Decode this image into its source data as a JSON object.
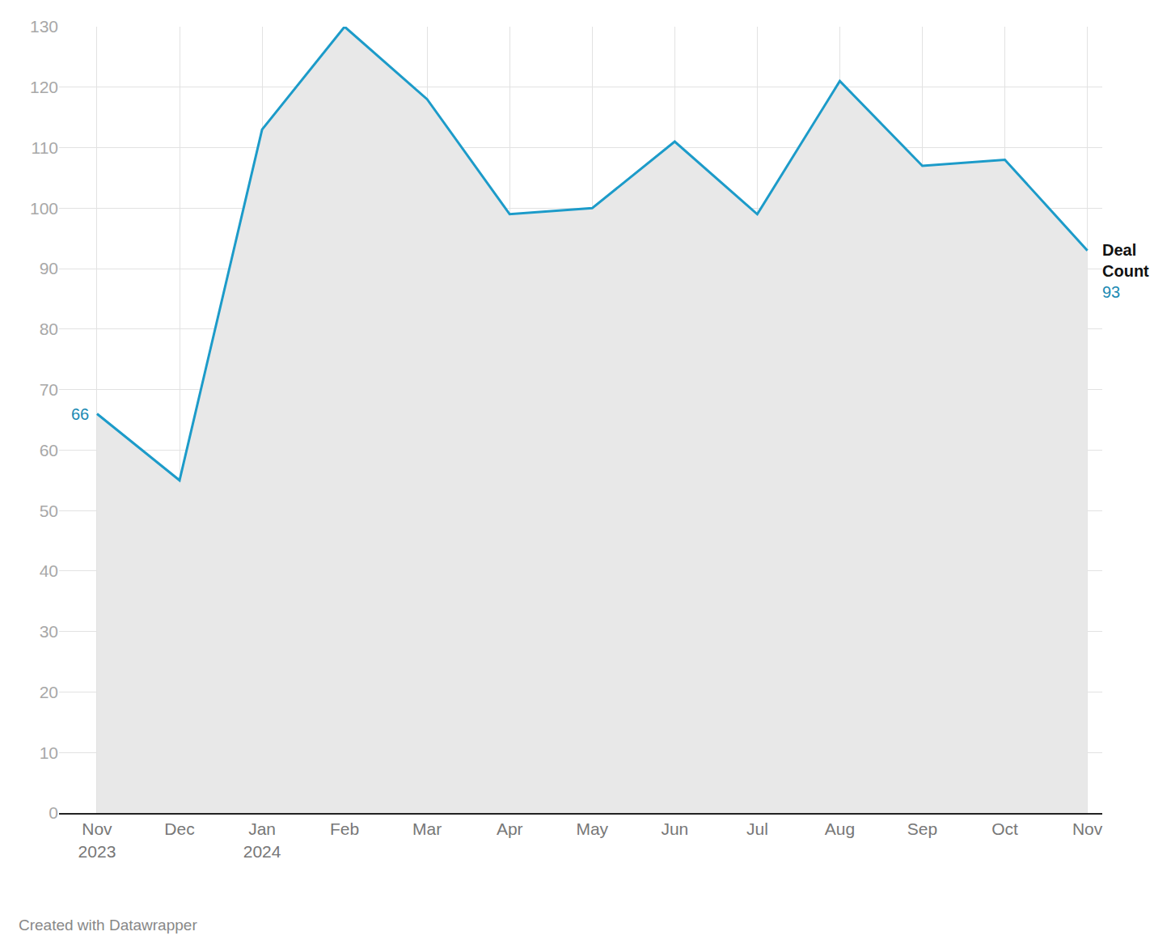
{
  "chart_data": {
    "type": "line",
    "categories": [
      "Nov 2023",
      "Dec",
      "Jan 2024",
      "Feb",
      "Mar",
      "Apr",
      "May",
      "Jun",
      "Jul",
      "Aug",
      "Sep",
      "Oct",
      "Nov"
    ],
    "series": [
      {
        "name": "Deal Count",
        "color": "#1c9bc9",
        "values": [
          66,
          55,
          113,
          130,
          118,
          99,
          100,
          111,
          99,
          121,
          107,
          108,
          93
        ]
      }
    ],
    "ylim": [
      0,
      130
    ],
    "yticks": [
      0,
      10,
      20,
      30,
      40,
      50,
      60,
      70,
      80,
      90,
      100,
      110,
      120,
      130
    ],
    "grid": true,
    "credit": "Created with Datawrapper"
  }
}
